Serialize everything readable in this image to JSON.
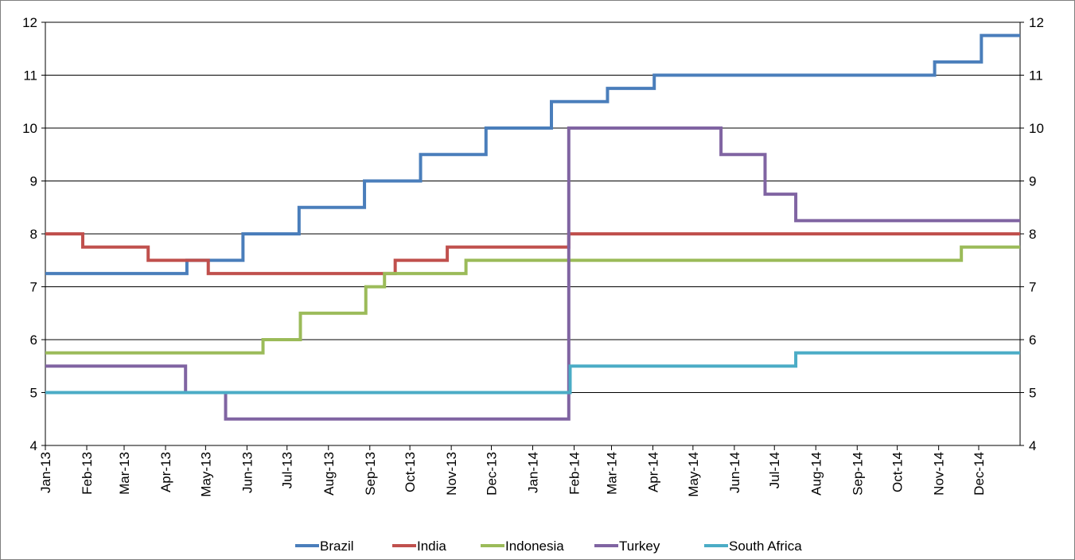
{
  "chart_data": {
    "type": "line",
    "step": true,
    "title": "",
    "xlabel": "",
    "ylabel": "",
    "ylim": [
      4,
      12
    ],
    "yticks": [
      "4",
      "5",
      "6",
      "7",
      "8",
      "9",
      "10",
      "11",
      "12"
    ],
    "secondary_yticks": [
      "4",
      "5",
      "6",
      "7",
      "8",
      "9",
      "10",
      "11",
      "12"
    ],
    "x_start": "2013-01-01",
    "x_end": "2014-12-31",
    "xticks": [
      {
        "date": "2013-01-01",
        "label": "Jan-13"
      },
      {
        "date": "2013-02-01",
        "label": "Feb-13"
      },
      {
        "date": "2013-03-01",
        "label": "Mar-13"
      },
      {
        "date": "2013-04-01",
        "label": "Apr-13"
      },
      {
        "date": "2013-05-01",
        "label": "May-13"
      },
      {
        "date": "2013-06-01",
        "label": "Jun-13"
      },
      {
        "date": "2013-07-01",
        "label": "Jul-13"
      },
      {
        "date": "2013-08-01",
        "label": "Aug-13"
      },
      {
        "date": "2013-09-01",
        "label": "Sep-13"
      },
      {
        "date": "2013-10-01",
        "label": "Oct-13"
      },
      {
        "date": "2013-11-01",
        "label": "Nov-13"
      },
      {
        "date": "2013-12-01",
        "label": "Dec-13"
      },
      {
        "date": "2014-01-01",
        "label": "Jan-14"
      },
      {
        "date": "2014-02-01",
        "label": "Feb-14"
      },
      {
        "date": "2014-03-01",
        "label": "Mar-14"
      },
      {
        "date": "2014-04-01",
        "label": "Apr-14"
      },
      {
        "date": "2014-05-01",
        "label": "May-14"
      },
      {
        "date": "2014-06-01",
        "label": "Jun-14"
      },
      {
        "date": "2014-07-01",
        "label": "Jul-14"
      },
      {
        "date": "2014-08-01",
        "label": "Aug-14"
      },
      {
        "date": "2014-09-01",
        "label": "Sep-14"
      },
      {
        "date": "2014-10-01",
        "label": "Oct-14"
      },
      {
        "date": "2014-11-01",
        "label": "Nov-14"
      },
      {
        "date": "2014-12-01",
        "label": "Dec-14"
      }
    ],
    "grid": true,
    "legend_position": "bottom",
    "series": [
      {
        "name": "Brazil",
        "color": "#4a7ebb",
        "points": [
          [
            "2013-01-01",
            7.25
          ],
          [
            "2013-04-17",
            7.5
          ],
          [
            "2013-05-29",
            8.0
          ],
          [
            "2013-07-10",
            8.5
          ],
          [
            "2013-08-28",
            9.0
          ],
          [
            "2013-10-09",
            9.5
          ],
          [
            "2013-11-27",
            10.0
          ],
          [
            "2014-01-15",
            10.5
          ],
          [
            "2014-02-26",
            10.75
          ],
          [
            "2014-04-02",
            11.0
          ],
          [
            "2014-10-29",
            11.25
          ],
          [
            "2014-12-03",
            11.75
          ]
        ]
      },
      {
        "name": "India",
        "color": "#c0504d",
        "points": [
          [
            "2013-01-01",
            8.0
          ],
          [
            "2013-01-29",
            7.75
          ],
          [
            "2013-03-19",
            7.5
          ],
          [
            "2013-05-03",
            7.25
          ],
          [
            "2013-09-20",
            7.5
          ],
          [
            "2013-10-29",
            7.75
          ],
          [
            "2014-01-28",
            8.0
          ]
        ]
      },
      {
        "name": "Indonesia",
        "color": "#9bbb59",
        "points": [
          [
            "2013-01-01",
            5.75
          ],
          [
            "2013-06-13",
            6.0
          ],
          [
            "2013-07-11",
            6.5
          ],
          [
            "2013-08-29",
            7.0
          ],
          [
            "2013-09-12",
            7.25
          ],
          [
            "2013-11-12",
            7.5
          ],
          [
            "2014-11-18",
            7.75
          ]
        ]
      },
      {
        "name": "Turkey",
        "color": "#8064a2",
        "points": [
          [
            "2013-01-01",
            5.5
          ],
          [
            "2013-04-16",
            5.0
          ],
          [
            "2013-05-16",
            4.5
          ],
          [
            "2014-01-28",
            10.0
          ],
          [
            "2014-05-22",
            9.5
          ],
          [
            "2014-06-24",
            8.75
          ],
          [
            "2014-07-17",
            8.25
          ]
        ]
      },
      {
        "name": "South Africa",
        "color": "#4bacc6",
        "points": [
          [
            "2013-01-01",
            5.0
          ],
          [
            "2014-01-29",
            5.5
          ],
          [
            "2014-07-17",
            5.75
          ]
        ]
      }
    ]
  }
}
